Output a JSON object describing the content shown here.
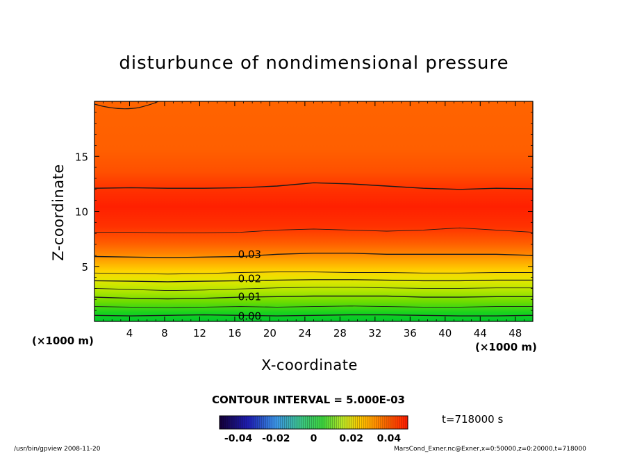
{
  "chart_data": {
    "type": "heatmap",
    "title": "disturbunce of nondimensional pressure",
    "xlabel": "X-coordinate",
    "ylabel": "Z-coordinate",
    "x_unit": "(×1000 m)",
    "y_unit": "(×1000 m)",
    "xlim": [
      0,
      50
    ],
    "ylim": [
      0,
      20
    ],
    "x_ticks": [
      4,
      8,
      12,
      16,
      20,
      24,
      28,
      32,
      36,
      40,
      44,
      48
    ],
    "y_ticks": [
      5,
      10,
      15
    ],
    "contour_interval_text": "CONTOUR INTERVAL = 5.000E-03",
    "contour_labels": [
      "0.03",
      "0.02",
      "0.01",
      "0.00"
    ],
    "contour_lines": [
      {
        "level": 0.0,
        "z": [
          0.55,
          0.5,
          0.55,
          0.6,
          0.55,
          0.5,
          0.55,
          0.6,
          0.6,
          0.55,
          0.5,
          0.5,
          0.55
        ]
      },
      {
        "level": 0.005,
        "z": [
          1.35,
          1.3,
          1.25,
          1.3,
          1.35,
          1.3,
          1.35,
          1.4,
          1.35,
          1.3,
          1.3,
          1.35,
          1.35
        ]
      },
      {
        "level": 0.01,
        "z": [
          2.2,
          2.1,
          2.05,
          2.1,
          2.2,
          2.25,
          2.3,
          2.3,
          2.3,
          2.2,
          2.2,
          2.25,
          2.25
        ]
      },
      {
        "level": 0.015,
        "z": [
          3.0,
          2.9,
          2.8,
          2.85,
          2.95,
          3.05,
          3.1,
          3.1,
          3.05,
          3.0,
          3.0,
          3.05,
          3.05
        ]
      },
      {
        "level": 0.02,
        "z": [
          3.7,
          3.65,
          3.6,
          3.65,
          3.7,
          3.75,
          3.8,
          3.8,
          3.75,
          3.7,
          3.7,
          3.75,
          3.75
        ]
      },
      {
        "level": 0.025,
        "z": [
          4.4,
          4.35,
          4.3,
          4.35,
          4.45,
          4.5,
          4.5,
          4.45,
          4.45,
          4.4,
          4.4,
          4.45,
          4.45
        ]
      },
      {
        "level": 0.03,
        "z": [
          5.9,
          5.85,
          5.8,
          5.85,
          5.9,
          6.1,
          6.2,
          6.2,
          6.1,
          6.1,
          6.1,
          6.1,
          6.0
        ]
      },
      {
        "level": 0.03,
        "z": [
          8.1,
          8.1,
          8.05,
          8.05,
          8.1,
          8.3,
          8.4,
          8.3,
          8.2,
          8.3,
          8.5,
          8.3,
          8.1
        ]
      },
      {
        "level": 0.03,
        "z": [
          12.1,
          12.15,
          12.1,
          12.1,
          12.15,
          12.3,
          12.6,
          12.5,
          12.3,
          12.1,
          12.0,
          12.1,
          12.05
        ]
      }
    ],
    "colorbar": {
      "ticks": [
        "-0.04",
        "-0.02",
        "0",
        "0.02",
        "0.04"
      ],
      "min": -0.05,
      "max": 0.05
    },
    "colors": {
      "low": "#00cc33",
      "mid": "#ffcc00",
      "high": "#ff3300",
      "top": "#ff5a00"
    }
  },
  "annotations": {
    "time": "t=718000 s",
    "footer_left": "/usr/bin/gpview   2008-11-20",
    "footer_right": "MarsCond_Exner.nc@Exner,x=0:50000,z=0:20000,t=718000"
  }
}
